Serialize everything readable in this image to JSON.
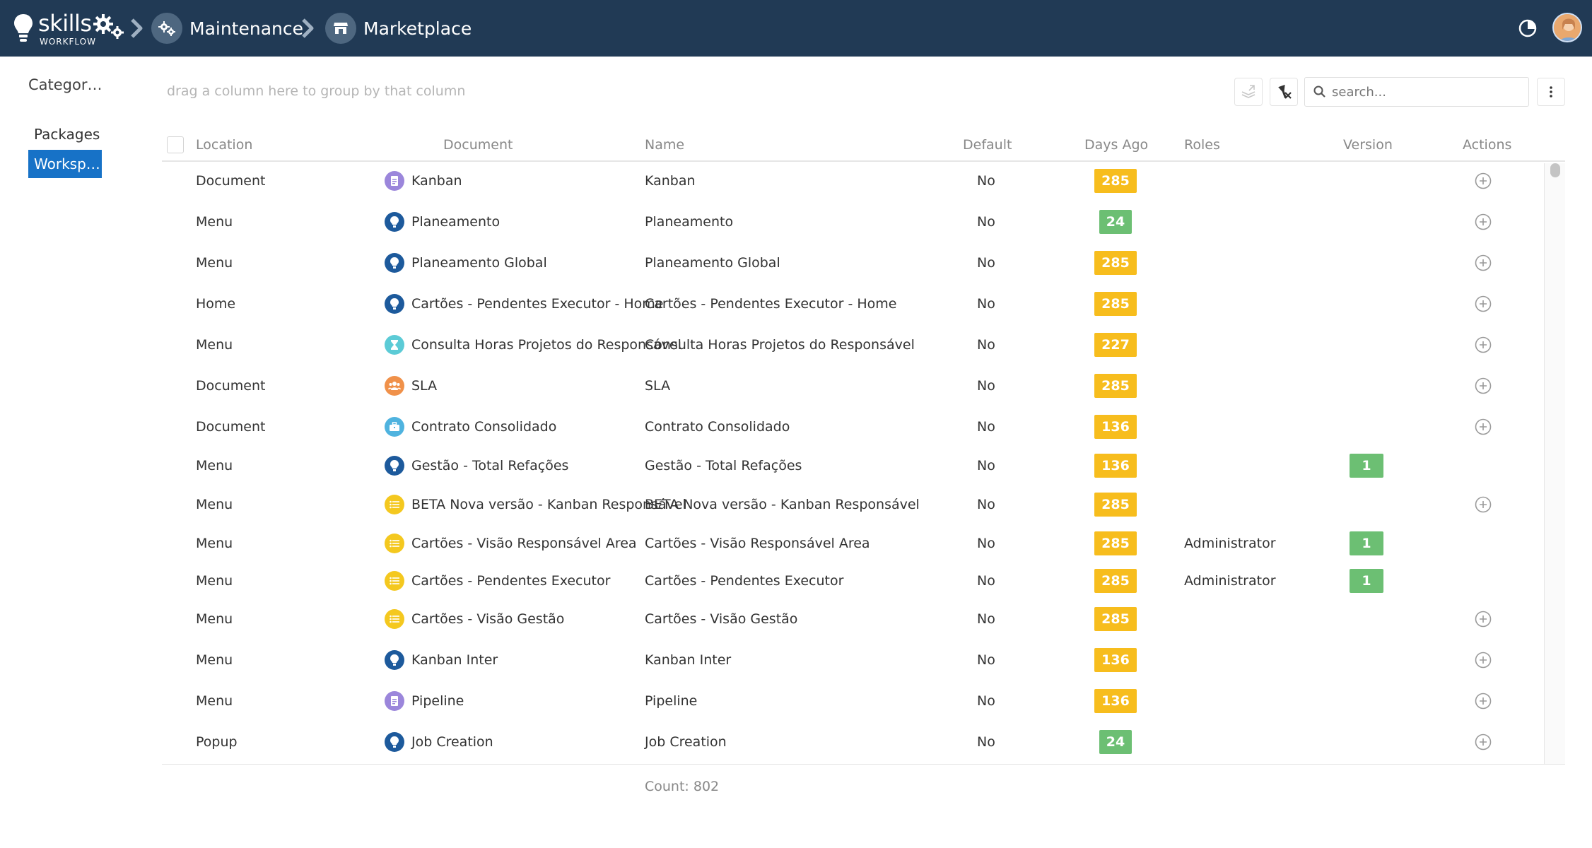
{
  "app": {
    "logo_text": "skills",
    "logo_sub": "WORKFLOW"
  },
  "breadcrumb": [
    {
      "label": "Maintenance",
      "icon": "gears-icon"
    },
    {
      "label": "Marketplace",
      "icon": "store-icon"
    }
  ],
  "sidebar": {
    "title": "Categor…",
    "items": [
      {
        "label": "Packages",
        "active": false
      },
      {
        "label": "Worksp…",
        "active": true
      }
    ]
  },
  "toolbar": {
    "group_hint": "drag a column here to group by that column",
    "search_placeholder": "search..."
  },
  "grid": {
    "columns": [
      "Location",
      "Document",
      "Name",
      "Default",
      "Days Ago",
      "Roles",
      "Version",
      "Actions"
    ],
    "rows": [
      {
        "location": "Document",
        "document": "Kanban",
        "icon": "document-icon",
        "icon_color": "#9b86db",
        "name": "Kanban",
        "default": "No",
        "days": "285",
        "days_color": "orange",
        "roles": "",
        "version": "",
        "action": true
      },
      {
        "location": "Menu",
        "document": "Planeamento",
        "icon": "bulb-icon",
        "icon_color": "#1d5a9c",
        "name": "Planeamento",
        "default": "No",
        "days": "24",
        "days_color": "green",
        "roles": "",
        "version": "",
        "action": true
      },
      {
        "location": "Menu",
        "document": "Planeamento Global",
        "icon": "bulb-icon",
        "icon_color": "#1d5a9c",
        "name": "Planeamento Global",
        "default": "No",
        "days": "285",
        "days_color": "orange",
        "roles": "",
        "version": "",
        "action": true
      },
      {
        "location": "Home",
        "document": "Cartões - Pendentes Executor - Home",
        "icon": "bulb-icon",
        "icon_color": "#1d5a9c",
        "name": "Cartões - Pendentes Executor - Home",
        "default": "No",
        "days": "285",
        "days_color": "orange",
        "roles": "",
        "version": "",
        "action": true
      },
      {
        "location": "Menu",
        "document": "Consulta Horas Projetos do Responsável",
        "icon": "hourglass-icon",
        "icon_color": "#5ccbd6",
        "name": "Consulta Horas Projetos do Responsável",
        "default": "No",
        "days": "227",
        "days_color": "orange",
        "roles": "",
        "version": "",
        "action": true
      },
      {
        "location": "Document",
        "document": "SLA",
        "icon": "users-icon",
        "icon_color": "#f0914a",
        "name": "SLA",
        "default": "No",
        "days": "285",
        "days_color": "orange",
        "roles": "",
        "version": "",
        "action": true
      },
      {
        "location": "Document",
        "document": "Contrato Consolidado",
        "icon": "briefcase-icon",
        "icon_color": "#4fb3df",
        "name": "Contrato Consolidado",
        "default": "No",
        "days": "136",
        "days_color": "orange",
        "roles": "",
        "version": "",
        "action": true
      },
      {
        "location": "Menu",
        "document": "Gestão - Total Refações",
        "icon": "bulb-icon",
        "icon_color": "#1d5a9c",
        "name": "Gestão - Total Refações",
        "default": "No",
        "days": "136",
        "days_color": "orange",
        "roles": "",
        "version": "1",
        "action": false
      },
      {
        "location": "Menu",
        "document": "BETA Nova versão - Kanban Responsável",
        "icon": "list-icon",
        "icon_color": "#f4c81f",
        "name": "BETA Nova versão - Kanban Responsável",
        "default": "No",
        "days": "285",
        "days_color": "orange",
        "roles": "",
        "version": "",
        "action": true
      },
      {
        "location": "Menu",
        "document": "Cartões - Visão Responsável Area",
        "icon": "list-icon",
        "icon_color": "#f4c81f",
        "name": "Cartões - Visão Responsável Area",
        "default": "No",
        "days": "285",
        "days_color": "orange",
        "roles": "Administrator",
        "version": "1",
        "action": false
      },
      {
        "location": "Menu",
        "document": "Cartões - Pendentes Executor",
        "icon": "list-icon",
        "icon_color": "#f4c81f",
        "name": "Cartões - Pendentes Executor",
        "default": "No",
        "days": "285",
        "days_color": "orange",
        "roles": "Administrator",
        "version": "1",
        "action": false
      },
      {
        "location": "Menu",
        "document": "Cartões - Visão Gestão",
        "icon": "list-icon",
        "icon_color": "#f4c81f",
        "name": "Cartões - Visão Gestão",
        "default": "No",
        "days": "285",
        "days_color": "orange",
        "roles": "",
        "version": "",
        "action": true
      },
      {
        "location": "Menu",
        "document": "Kanban Inter",
        "icon": "bulb-icon",
        "icon_color": "#1d5a9c",
        "name": "Kanban Inter",
        "default": "No",
        "days": "136",
        "days_color": "orange",
        "roles": "",
        "version": "",
        "action": true
      },
      {
        "location": "Menu",
        "document": "Pipeline",
        "icon": "document-icon",
        "icon_color": "#9b86db",
        "name": "Pipeline",
        "default": "No",
        "days": "136",
        "days_color": "orange",
        "roles": "",
        "version": "",
        "action": true
      },
      {
        "location": "Popup",
        "document": "Job Creation",
        "icon": "bulb-icon",
        "icon_color": "#1d5a9c",
        "name": "Job Creation",
        "default": "No",
        "days": "24",
        "days_color": "green",
        "roles": "",
        "version": "",
        "action": true
      }
    ],
    "count_label": "Count: 802"
  }
}
